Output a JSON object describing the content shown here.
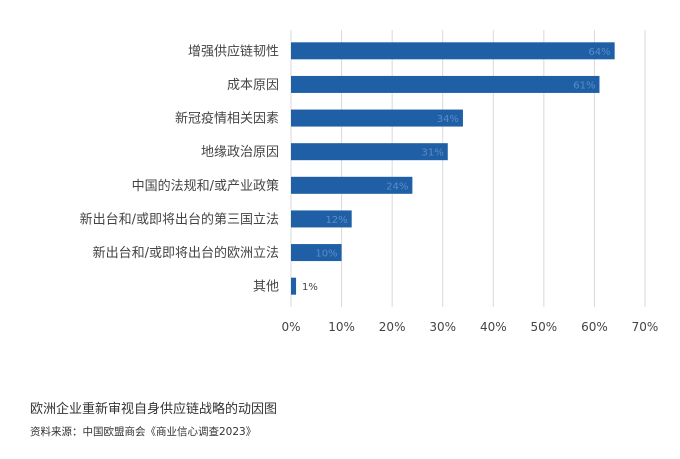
{
  "chart_data": {
    "type": "bar",
    "orientation": "horizontal",
    "categories": [
      "增强供应链韧性",
      "成本原因",
      "新冠疫情相关因素",
      "地缘政治原因",
      "中国的法规和/或产业政策",
      "新出台和/或即将出台的第三国立法",
      "新出台和/或即将出台的欧洲立法",
      "其他"
    ],
    "values": [
      64,
      61,
      34,
      31,
      24,
      12,
      10,
      1
    ],
    "data_labels": [
      "64%",
      "61%",
      "34%",
      "31%",
      "24%",
      "12%",
      "10%",
      "1%"
    ],
    "xlim": [
      0,
      70
    ],
    "x_ticks": [
      0,
      10,
      20,
      30,
      40,
      50,
      60,
      70
    ],
    "x_tick_labels": [
      "0%",
      "10%",
      "20%",
      "30%",
      "40%",
      "50%",
      "60%",
      "70%"
    ],
    "grid": true,
    "legend": "none",
    "bar_color": "#1f5fa6",
    "grid_color": "#d9d9d9"
  },
  "caption": {
    "title": "欧洲企业重新审视自身供应链战略的动因图",
    "source": "资料来源：中国欧盟商会《商业信心调查2023》"
  }
}
